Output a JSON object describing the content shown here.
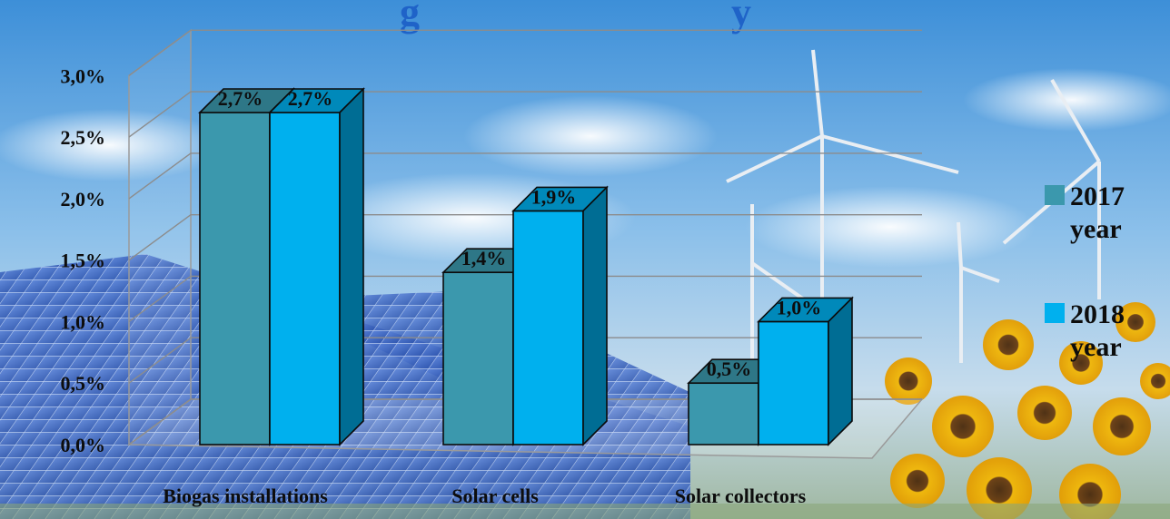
{
  "title_fragment_left": "g",
  "title_fragment_right": "y",
  "chart_data": {
    "type": "bar",
    "categories": [
      "Biogas installations",
      "Solar cells",
      "Solar collectors"
    ],
    "series": [
      {
        "name": "2017 year",
        "values": [
          2.7,
          1.4,
          0.5
        ],
        "labels": [
          "2,7%",
          "1,4%",
          "0,5%"
        ]
      },
      {
        "name": "2018 year",
        "values": [
          2.7,
          1.9,
          1.0
        ],
        "labels": [
          "2,7%",
          "1,9%",
          "1,0%"
        ]
      }
    ],
    "y_ticks": [
      "0,0%",
      "0,5%",
      "1,0%",
      "1,5%",
      "2,0%",
      "2,5%",
      "3,0%"
    ],
    "ylim": [
      0,
      3
    ],
    "grid": true,
    "legend_position": "right",
    "colors": {
      "2017 year": "#3b98ad",
      "2018 year": "#00b0ee"
    }
  },
  "legend": [
    {
      "line1": "2017",
      "line2": "year"
    },
    {
      "line1": "2018",
      "line2": "year"
    }
  ]
}
